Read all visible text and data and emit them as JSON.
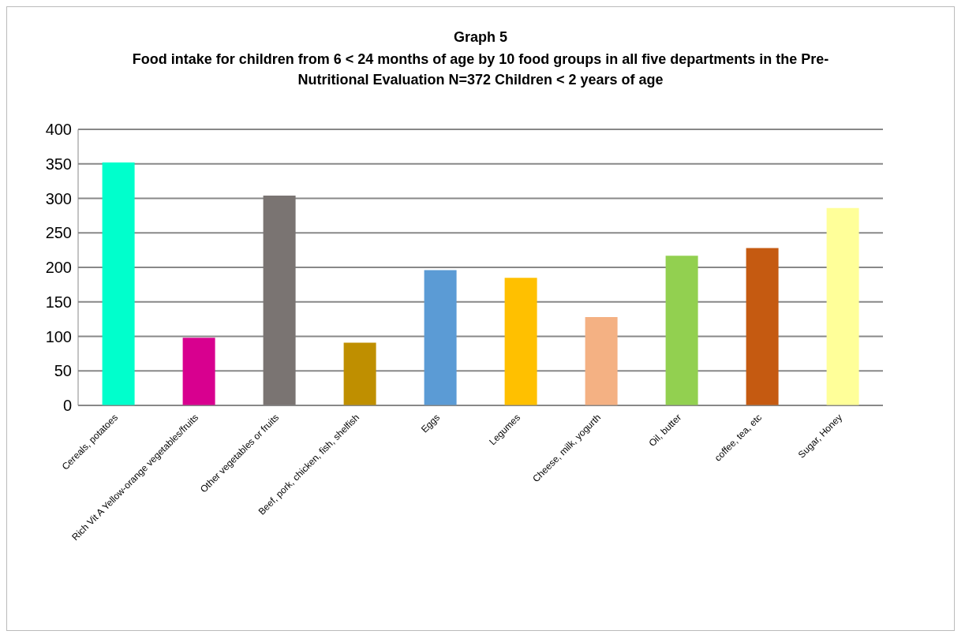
{
  "chart_data": {
    "type": "bar",
    "title": "Graph 5",
    "subtitle": "Food intake for children from 6 < 24 months of age by 10 food groups in all five departments in the Pre-Nutritional Evaluation N=372 Children < 2 years of age",
    "categories": [
      "Cereals, potatoes",
      "Rich Vit A Yellow-orange vegetables/fruits",
      "Other vegetables or fruits",
      "Beef, pork, chicken, fish, shelfish",
      "Eggs",
      "Legumes",
      "Cheese, milk, yogurth",
      "Oil, butter",
      "coffee, tea, etc",
      "Sugar, Honey"
    ],
    "values": [
      352,
      98,
      304,
      91,
      196,
      185,
      128,
      217,
      228,
      286
    ],
    "colors": [
      "#00ffcc",
      "#d8008f",
      "#7a7472",
      "#bf8f00",
      "#5b9bd5",
      "#ffc000",
      "#f4b183",
      "#92d050",
      "#c55a11",
      "#ffff99"
    ],
    "ylim": [
      0,
      400
    ],
    "yticks": [
      0,
      50,
      100,
      150,
      200,
      250,
      300,
      350,
      400
    ],
    "grid": "y"
  }
}
